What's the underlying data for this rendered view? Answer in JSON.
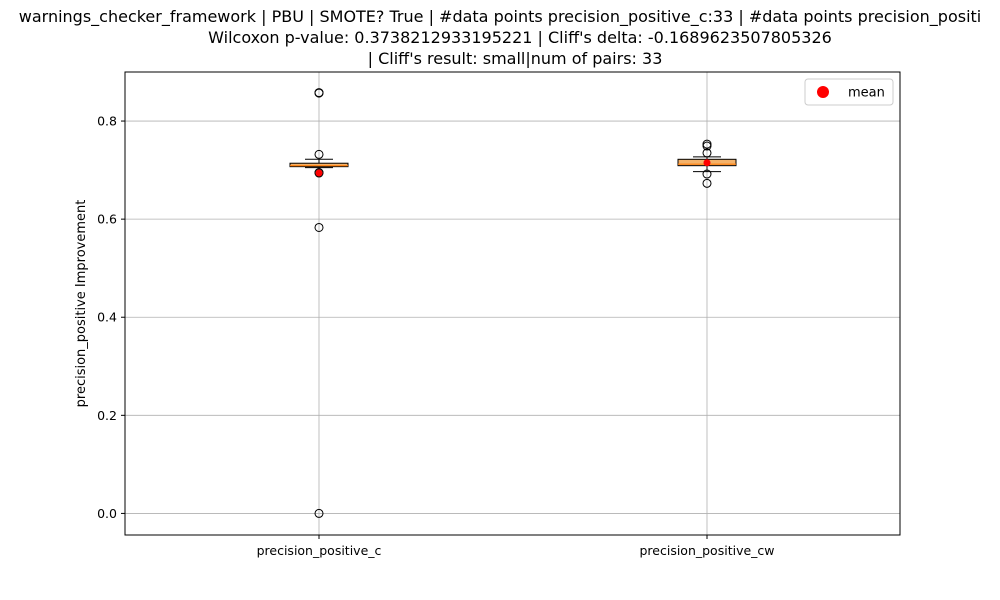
{
  "chart_data": {
    "type": "box",
    "title_lines": [
      "warnings_checker_framework | PBU | SMOTE? True | #data points precision_positive_c:33 | #data points precision_positi",
      "Wilcoxon p-value: 0.3738212933195221 | Cliff's delta: -0.1689623507805326",
      "| Cliff's result: small|num of pairs: 33"
    ],
    "ylabel": "precision_positive Improvement",
    "xlabel": "",
    "ylim": [
      -0.044,
      0.9
    ],
    "yticks": [
      0.0,
      0.2,
      0.4,
      0.6,
      0.8
    ],
    "ytick_labels": [
      "0.0",
      "0.2",
      "0.4",
      "0.6",
      "0.8"
    ],
    "grid": true,
    "legend": {
      "position": "top-right",
      "entries": [
        {
          "label": "mean",
          "color": "#ff0000",
          "marker": "circle"
        }
      ]
    },
    "categories": [
      "precision_positive_c",
      "precision_positive_cw"
    ],
    "boxes": [
      {
        "name": "precision_positive_c",
        "q1": 0.707,
        "median": 0.709,
        "q3": 0.714,
        "whisker_low": 0.705,
        "whisker_high": 0.722,
        "mean": 0.694,
        "outliers": [
          0.857,
          0.858,
          0.732,
          0.695,
          0.694,
          0.583,
          0.0
        ]
      },
      {
        "name": "precision_positive_cw",
        "q1": 0.709,
        "median": 0.712,
        "q3": 0.722,
        "whisker_low": 0.697,
        "whisker_high": 0.727,
        "mean": 0.715,
        "outliers": [
          0.753,
          0.749,
          0.735,
          0.692,
          0.673
        ]
      }
    ],
    "colors": {
      "box_fill": "#f4b26a",
      "box_edge": "#000000",
      "median": "#ff7f0e",
      "mean_marker": "#ff0000",
      "grid": "#b0b0b0",
      "outlier_edge": "#000000"
    }
  }
}
